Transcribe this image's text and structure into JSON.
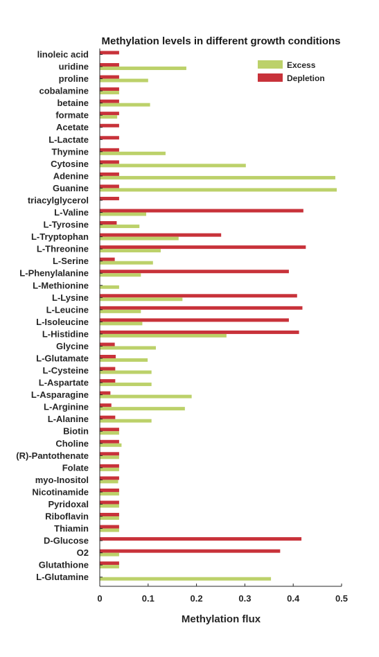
{
  "chart_data": {
    "type": "bar",
    "orientation": "horizontal",
    "title": "Methylation levels in different growth conditions",
    "xlabel": "Methylation flux",
    "ylabel": "",
    "xlim": [
      0,
      0.5
    ],
    "xticks": [
      0,
      0.1,
      0.2,
      0.3,
      0.4,
      0.5
    ],
    "xtick_labels": [
      "0",
      "0.1",
      "0.2",
      "0.3",
      "0.4",
      "0.5"
    ],
    "legend_position": "top-right",
    "grid": false,
    "categories": [
      "linoleic acid",
      "uridine",
      "proline",
      "cobalamine",
      "betaine",
      "formate",
      "Acetate",
      "L-Lactate",
      "Thymine",
      "Cytosine",
      "Adenine",
      "Guanine",
      "triacylglycerol",
      "L-Valine",
      "L-Tyrosine",
      "L-Tryptophan",
      "L-Threonine",
      "L-Serine",
      "L-Phenylalanine",
      "L-Methionine",
      "L-Lysine",
      "L-Leucine",
      "L-Isoleucine",
      "L-Histidine",
      "Glycine",
      "L-Glutamate",
      "L-Cysteine",
      "L-Aspartate",
      "L-Asparagine",
      "L-Arginine",
      "L-Alanine",
      "Biotin",
      "Choline",
      "(R)-Pantothenate",
      "Folate",
      "myo-Inositol",
      "Nicotinamide",
      "Pyridoxal",
      "Riboflavin",
      "Thiamin",
      "D-Glucose",
      "O2",
      "Glutathione",
      "L-Glutamine"
    ],
    "series": [
      {
        "name": "Excess",
        "color": "#bcd16a",
        "values": [
          0,
          0.179,
          0.1,
          0.04,
          0.104,
          0.036,
          0,
          0,
          0.136,
          0.302,
          0.487,
          0.49,
          0,
          0.096,
          0.082,
          0.163,
          0.126,
          0.11,
          0.085,
          0.04,
          0.171,
          0.085,
          0.088,
          0.262,
          0.116,
          0.099,
          0.107,
          0.107,
          0.19,
          0.176,
          0.107,
          0.04,
          0.045,
          0.04,
          0.04,
          0.038,
          0.04,
          0.04,
          0.04,
          0.04,
          0,
          0.04,
          0.04,
          0.354
        ]
      },
      {
        "name": "Depletion",
        "color": "#c8323a",
        "values": [
          0.04,
          0.04,
          0.04,
          0.04,
          0.04,
          0.04,
          0.04,
          0.04,
          0.04,
          0.04,
          0.04,
          0.04,
          0.04,
          0.421,
          0.035,
          0.251,
          0.426,
          0.031,
          0.391,
          0,
          0.408,
          0.419,
          0.391,
          0.412,
          0.031,
          0.033,
          0.032,
          0.032,
          0.022,
          0.024,
          0.032,
          0.04,
          0.04,
          0.04,
          0.04,
          0.04,
          0.04,
          0.04,
          0.04,
          0.04,
          0.417,
          0.373,
          0.04,
          0
        ]
      }
    ]
  }
}
